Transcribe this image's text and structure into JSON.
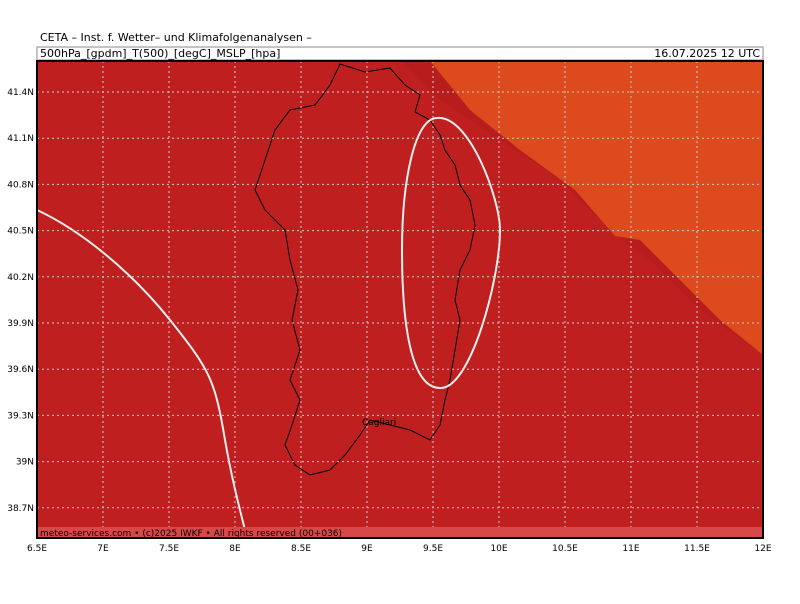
{
  "header": {
    "title": "CETA – Inst. f. Wetter– und Klimafolgenanalysen –",
    "fields": "500hPa_[gpdm]_T(500)_[degC]_MSLP_[hpa]",
    "date": "16.07.2025 12 UTC"
  },
  "map": {
    "place_label": "Cagliari",
    "x_labels": [
      "6.5E",
      "7E",
      "7.5E",
      "8E",
      "8.5E",
      "9E",
      "9.5E",
      "10E",
      "10.5E",
      "11E",
      "11.5E",
      "12E"
    ],
    "y_labels": [
      "41.4N",
      "41.1N",
      "40.8N",
      "40.5N",
      "40.2N",
      "39.9N",
      "39.6N",
      "39.3N",
      "39N",
      "38.7N"
    ]
  },
  "footer": {
    "credit": "meteo-services.com • (c)2025 IWKF • All rights reserved (00+036)"
  }
}
